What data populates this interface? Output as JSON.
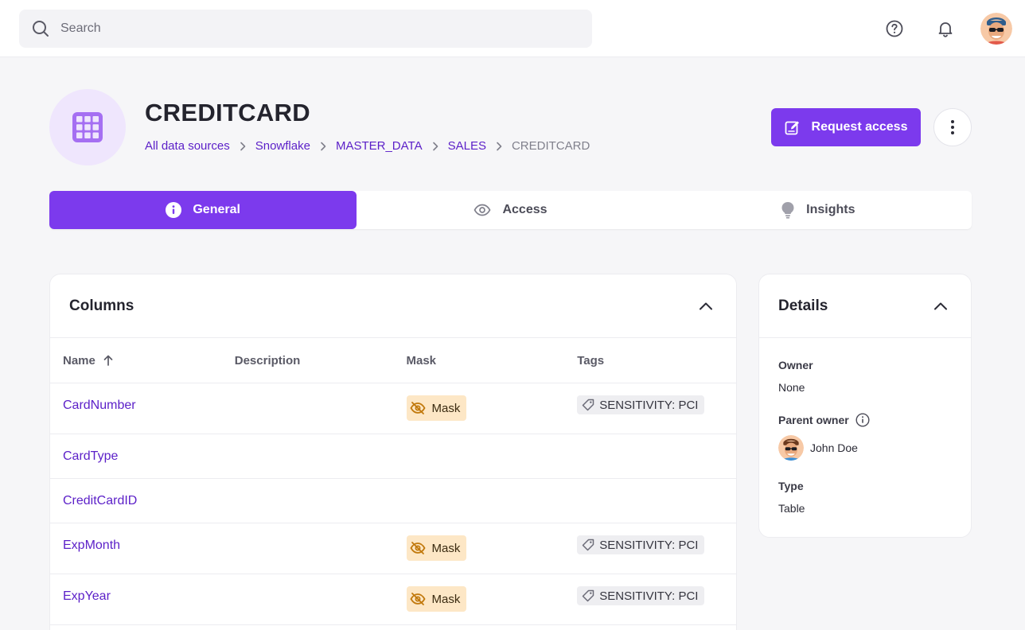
{
  "search": {
    "placeholder": "Search"
  },
  "header": {
    "title": "CREDITCARD",
    "breadcrumb": [
      "All data sources",
      "Snowflake",
      "MASTER_DATA",
      "SALES"
    ],
    "breadcrumb_current": "CREDITCARD",
    "request_access_label": "Request access"
  },
  "tabs": [
    {
      "label": "General",
      "active": true,
      "icon": "info-icon"
    },
    {
      "label": "Access",
      "active": false,
      "icon": "eye-icon"
    },
    {
      "label": "Insights",
      "active": false,
      "icon": "lightbulb-icon"
    }
  ],
  "columns": {
    "title": "Columns",
    "headers": {
      "name": "Name",
      "description": "Description",
      "mask": "Mask",
      "tags": "Tags"
    },
    "rows": [
      {
        "name": "CardNumber",
        "description": "",
        "mask": "Mask",
        "tag": "SENSITIVITY: PCI"
      },
      {
        "name": "CardType",
        "description": "",
        "mask": "",
        "tag": ""
      },
      {
        "name": "CreditCardID",
        "description": "",
        "mask": "",
        "tag": ""
      },
      {
        "name": "ExpMonth",
        "description": "",
        "mask": "Mask",
        "tag": "SENSITIVITY: PCI"
      },
      {
        "name": "ExpYear",
        "description": "",
        "mask": "Mask",
        "tag": "SENSITIVITY: PCI"
      }
    ]
  },
  "details": {
    "title": "Details",
    "owner_label": "Owner",
    "owner_value": "None",
    "parent_owner_label": "Parent owner",
    "parent_owner_value": "John Doe",
    "type_label": "Type",
    "type_value": "Table"
  },
  "colors": {
    "accent": "#7c3aed",
    "link": "#5b1fc8",
    "mask_bg": "#fde7c6",
    "mask_icon": "#c27a0e",
    "entity_bg": "#efe6fd"
  }
}
